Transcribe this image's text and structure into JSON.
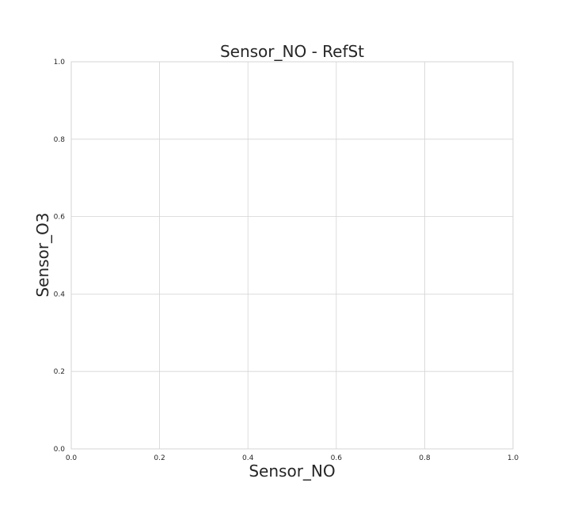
{
  "chart_data": {
    "type": "scatter",
    "title": "Sensor_NO - RefSt",
    "xlabel": "Sensor_NO",
    "ylabel": "Sensor_O3",
    "xlim": [
      0.0,
      1.0
    ],
    "ylim": [
      0.0,
      1.0
    ],
    "xticks": [
      "0.0",
      "0.2",
      "0.4",
      "0.6",
      "0.8",
      "1.0"
    ],
    "yticks": [
      "0.0",
      "0.2",
      "0.4",
      "0.6",
      "0.8",
      "1.0"
    ],
    "grid": true,
    "series": []
  }
}
